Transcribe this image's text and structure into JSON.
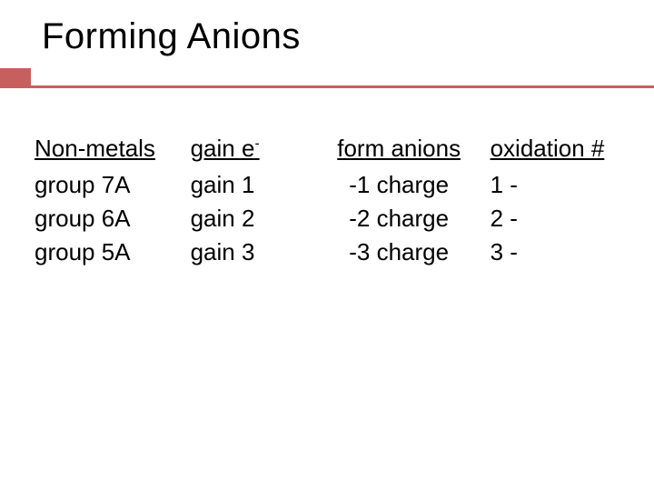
{
  "title": "Forming Anions",
  "accent_color": "#c75f5f",
  "headers": {
    "col1": "Non-metals",
    "col2_prefix": "gain e",
    "col2_sup": "-",
    "col3": "form anions",
    "col4": "oxidation #"
  },
  "rows": [
    {
      "group": "group 7A",
      "gain": "gain 1",
      "charge": "-1 charge",
      "ox": "1 -"
    },
    {
      "group": "group 6A",
      "gain": "gain 2",
      "charge": "-2 charge",
      "ox": "2 -"
    },
    {
      "group": "group 5A",
      "gain": "gain 3",
      "charge": "-3 charge",
      "ox": "3 -"
    }
  ]
}
